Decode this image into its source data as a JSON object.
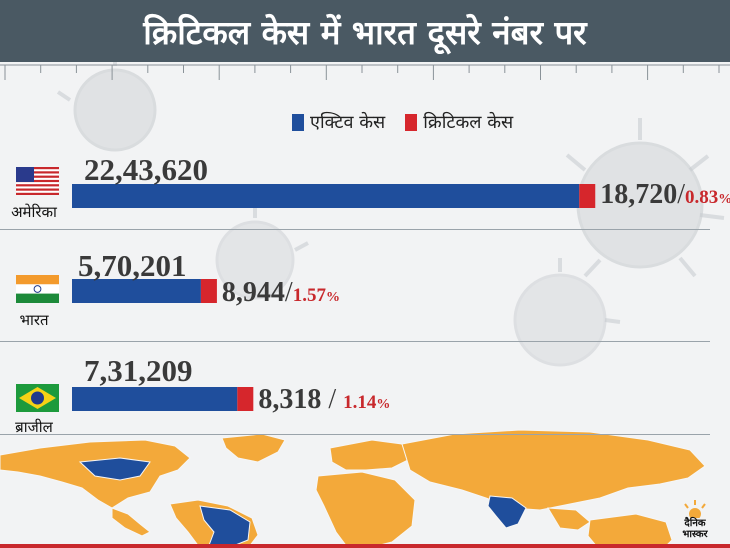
{
  "title": "क्रिटिकल केस में भारत दूसरे नंबर पर",
  "colors": {
    "active": "#1f4e9c",
    "critical": "#d6262c",
    "title_bg": "#4a5963",
    "map_orange": "#f3a93a",
    "map_blue": "#1f4e9c"
  },
  "legend": {
    "active_label": "एक्टिव केस",
    "critical_label": "क्रिटिकल केस"
  },
  "chart_data": {
    "type": "bar",
    "orientation": "horizontal",
    "stacked": true,
    "categories": [
      "अमेरिका",
      "भारत",
      "ब्राजील"
    ],
    "flags": [
      "usa-flag-icon",
      "india-flag-icon",
      "brazil-flag-icon"
    ],
    "series": [
      {
        "name": "एक्टिव केस",
        "values": [
          2243620,
          570201,
          731209
        ],
        "labels": [
          "22,43,620",
          "5,70,201",
          "7,31,209"
        ]
      },
      {
        "name": "क्रिटिकल केस",
        "values": [
          18720,
          8944,
          8318
        ],
        "labels": [
          "18,720",
          "8,944",
          "8,318"
        ],
        "percent_labels": [
          "0.83",
          "1.57",
          "1.14"
        ]
      }
    ],
    "xlim": [
      0,
      2300000
    ],
    "legend_position": "top",
    "grid": false
  },
  "logo": {
    "line1": "दैनिक",
    "line2": "भास्कर"
  }
}
